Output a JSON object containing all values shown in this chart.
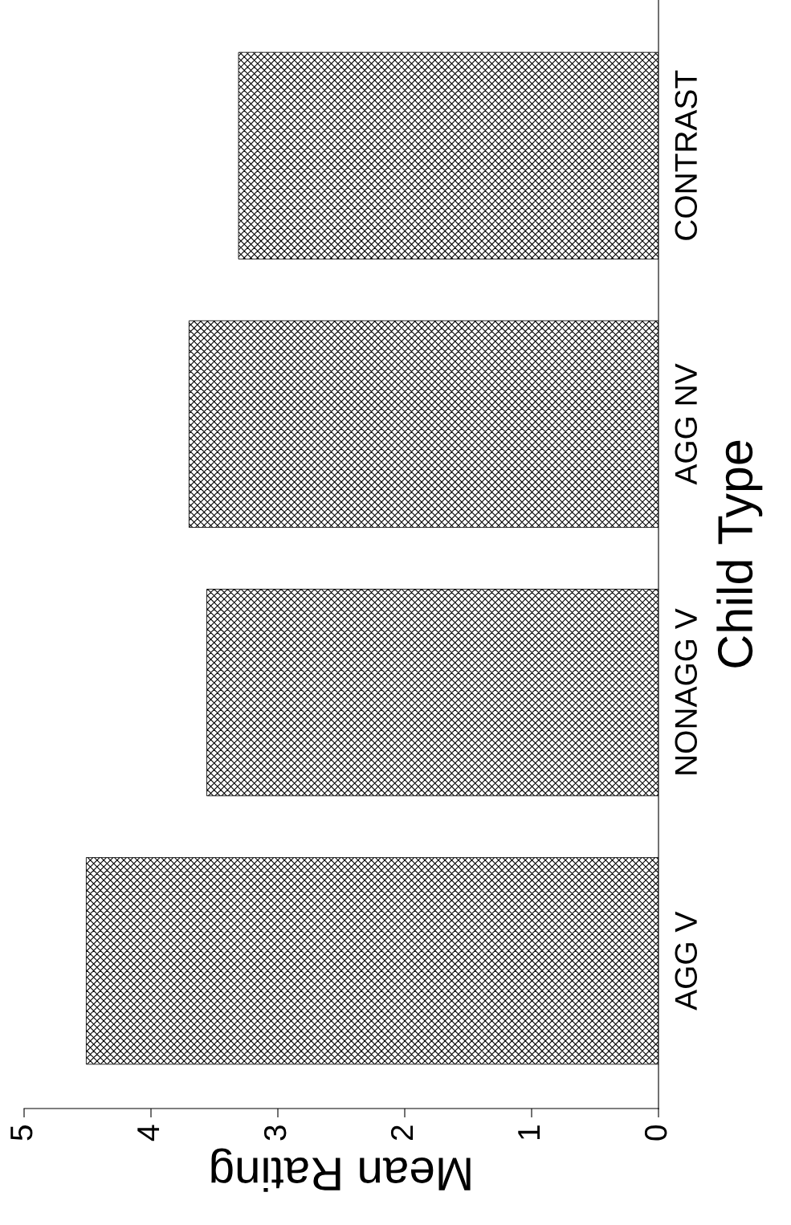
{
  "chart_data": {
    "type": "bar",
    "orientation": "horizontal",
    "categories": [
      "CONTRAST",
      "AGG NV",
      "NONAGG V",
      "AGG V"
    ],
    "values": [
      3.31,
      3.7,
      3.56,
      4.51
    ],
    "color": "#000000",
    "xlabel": "Mean Rating",
    "ylabel": "Child Type",
    "xlim": [
      5,
      0
    ],
    "xticks": [
      0,
      1,
      2,
      3,
      4,
      5
    ],
    "grid": false,
    "legend": false
  }
}
